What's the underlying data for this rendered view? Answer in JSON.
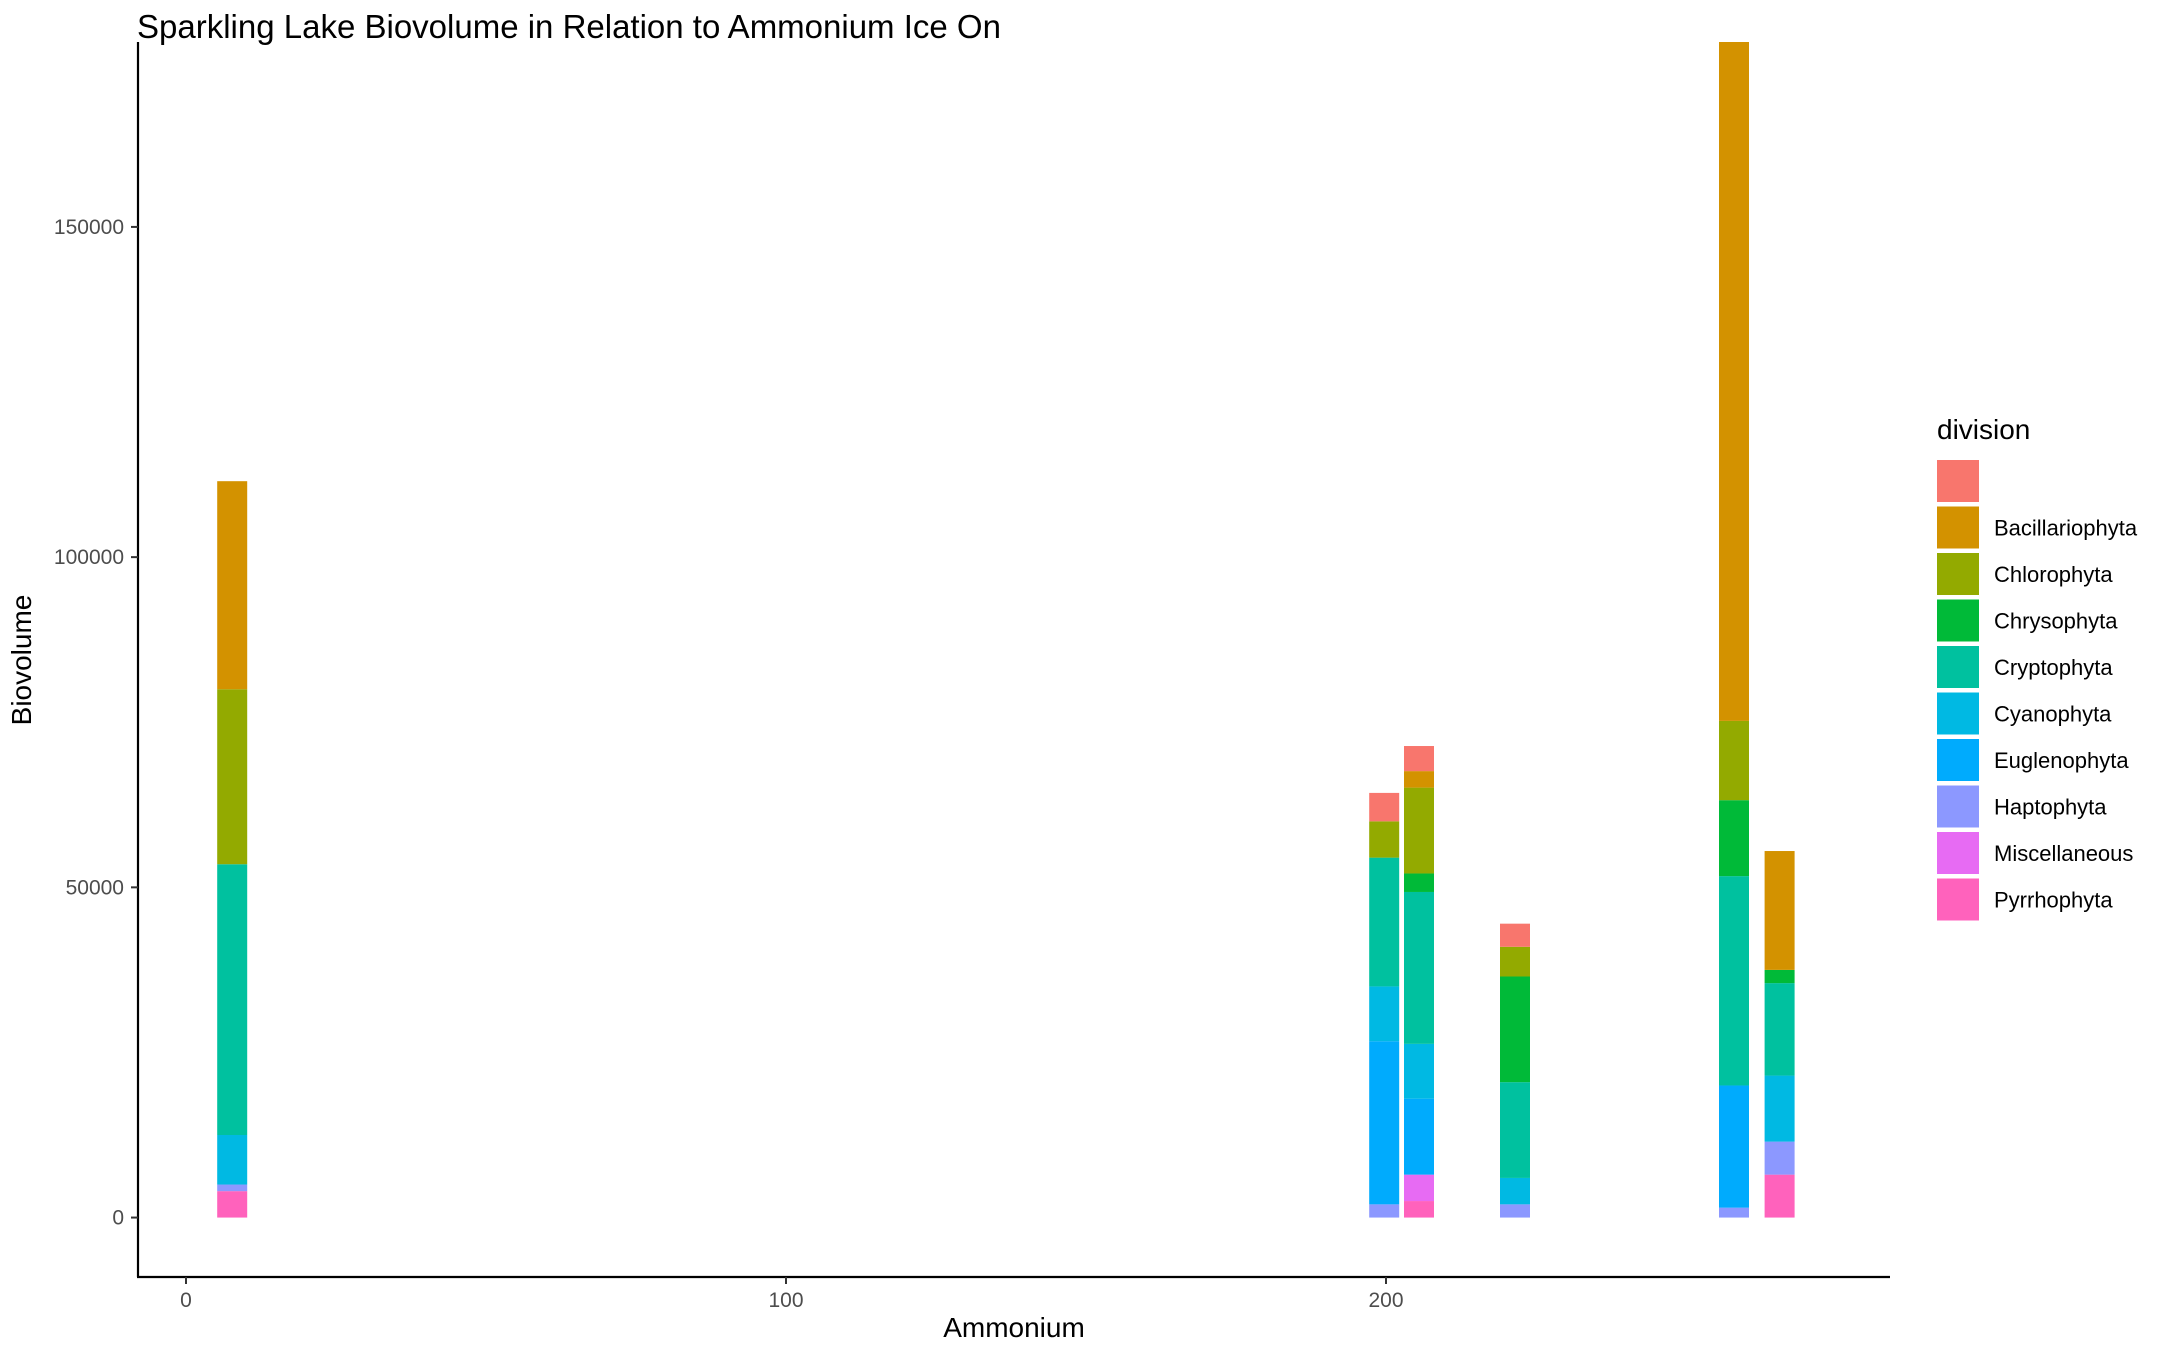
{
  "chart_data": {
    "type": "bar",
    "stacked": true,
    "title": "Sparkling Lake Biovolume in Relation to Ammonium Ice On",
    "xlabel": "Ammonium",
    "ylabel": "Biovolume",
    "xlim": [
      -8,
      284
    ],
    "ylim": [
      -9000,
      178000
    ],
    "x_ticks": [
      0,
      100,
      200
    ],
    "y_ticks": [
      0,
      50000,
      100000,
      150000
    ],
    "grid": false,
    "legend": {
      "title": "division",
      "position": "right",
      "entries": [
        {
          "name": "",
          "color": "#F8766D"
        },
        {
          "name": "Bacillariophyta",
          "color": "#D39200"
        },
        {
          "name": "Chlorophyta",
          "color": "#93AA00"
        },
        {
          "name": "Chrysophyta",
          "color": "#00BA38"
        },
        {
          "name": "Cryptophyta",
          "color": "#00C19F"
        },
        {
          "name": "Cyanophyta",
          "color": "#00B9E3"
        },
        {
          "name": "Euglenophyta",
          "color": "#00ABFD"
        },
        {
          "name": "Haptophyta",
          "color": "#8C98FF"
        },
        {
          "name": "Miscellaneous",
          "color": "#E76BF3"
        },
        {
          "name": "Pyrrhophyta",
          "color": "#FF62BC"
        }
      ]
    },
    "bar_width": 5,
    "stacks": [
      {
        "x": 7.7,
        "segments": [
          {
            "division": "Pyrrhophyta",
            "value": 4000
          },
          {
            "division": "Haptophyta",
            "value": 1000
          },
          {
            "division": "Cyanophyta",
            "value": 7500
          },
          {
            "division": "Cryptophyta",
            "value": 41000
          },
          {
            "division": "Chlorophyta",
            "value": 26500
          },
          {
            "division": "Bacillariophyta",
            "value": 31500
          }
        ]
      },
      {
        "x": 199.7,
        "segments": [
          {
            "division": "Haptophyta",
            "value": 2000
          },
          {
            "division": "Euglenophyta",
            "value": 24700
          },
          {
            "division": "Cyanophyta",
            "value": 8300
          },
          {
            "division": "Cryptophyta",
            "value": 19500
          },
          {
            "division": "Chlorophyta",
            "value": 5500
          },
          {
            "division": "",
            "value": 4300
          }
        ]
      },
      {
        "x": 205.5,
        "segments": [
          {
            "division": "Pyrrhophyta",
            "value": 2500
          },
          {
            "division": "Miscellaneous",
            "value": 4000
          },
          {
            "division": "Euglenophyta",
            "value": 11500
          },
          {
            "division": "Cyanophyta",
            "value": 8300
          },
          {
            "division": "Cryptophyta",
            "value": 23000
          },
          {
            "division": "Chrysophyta",
            "value": 2800
          },
          {
            "division": "Chlorophyta",
            "value": 13000
          },
          {
            "division": "Bacillariophyta",
            "value": 2500
          },
          {
            "division": "",
            "value": 3800
          }
        ]
      },
      {
        "x": 221.5,
        "segments": [
          {
            "division": "Haptophyta",
            "value": 2000
          },
          {
            "division": "Cyanophyta",
            "value": 4000
          },
          {
            "division": "Cryptophyta",
            "value": 14500
          },
          {
            "division": "Chrysophyta",
            "value": 16000
          },
          {
            "division": "Chlorophyta",
            "value": 4500
          },
          {
            "division": "",
            "value": 3500
          }
        ]
      },
      {
        "x": 258,
        "segments": [
          {
            "division": "Haptophyta",
            "value": 1500
          },
          {
            "division": "Euglenophyta",
            "value": 18500
          },
          {
            "division": "Cryptophyta",
            "value": 31700
          },
          {
            "division": "Chrysophyta",
            "value": 11500
          },
          {
            "division": "Chlorophyta",
            "value": 12000
          },
          {
            "division": "Bacillariophyta",
            "value": 102800
          }
        ]
      },
      {
        "x": 265.6,
        "segments": [
          {
            "division": "Pyrrhophyta",
            "value": 6500
          },
          {
            "division": "Haptophyta",
            "value": 5000
          },
          {
            "division": "Cyanophyta",
            "value": 10000
          },
          {
            "division": "Cryptophyta",
            "value": 14000
          },
          {
            "division": "Chrysophyta",
            "value": 2000
          },
          {
            "division": "Bacillariophyta",
            "value": 18000
          }
        ]
      }
    ]
  }
}
